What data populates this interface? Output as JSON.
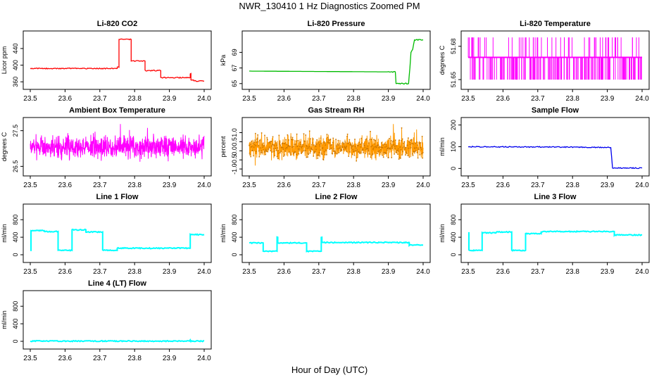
{
  "figure": {
    "title": "NWR_130410  1 Hz Diagnostics Zoomed PM",
    "xlabel": "Hour of Day (UTC)"
  },
  "chart_data": [
    {
      "type": "line",
      "title": "Li-820 CO2",
      "ylabel": "Licor ppm",
      "color": "#ff0000",
      "xlim": [
        23.5,
        24.0
      ],
      "xticks": [
        23.5,
        23.6,
        23.7,
        23.8,
        23.9,
        24.0
      ],
      "ylim": [
        352,
        472
      ],
      "yticks": [
        360,
        400,
        440
      ],
      "series": [
        {
          "style": "step",
          "x": [
            23.5,
            23.75,
            23.75,
            23.755,
            23.755,
            23.79,
            23.79,
            23.83,
            23.83,
            23.875,
            23.875,
            23.96,
            23.96,
            23.962,
            23.962,
            23.97,
            23.97,
            24.0
          ],
          "y": [
            392,
            392,
            395,
            395,
            462,
            462,
            410,
            410,
            387,
            387,
            370,
            370,
            380,
            380,
            364,
            364,
            362,
            362
          ]
        }
      ]
    },
    {
      "type": "line",
      "title": "Li-820 Pressure",
      "ylabel": "kPa",
      "color": "#00bb00",
      "xlim": [
        23.5,
        24.0
      ],
      "xticks": [
        23.5,
        23.6,
        23.7,
        23.8,
        23.9,
        24.0
      ],
      "ylim": [
        64.8,
        71.2
      ],
      "yticks": [
        65,
        67,
        69
      ],
      "series": [
        {
          "style": "line",
          "x": [
            23.5,
            23.7,
            23.9,
            23.92,
            23.922,
            23.958,
            23.962,
            23.965,
            23.97,
            23.975,
            23.98,
            24.0
          ],
          "y": [
            66.6,
            66.55,
            66.5,
            66.5,
            65.0,
            65.0,
            67.0,
            69.0,
            69.4,
            70.6,
            70.6,
            70.6
          ]
        }
      ]
    },
    {
      "type": "line",
      "title": "Li-820 Temperature",
      "ylabel": "degrees C",
      "color": "#ff00ff",
      "xlim": [
        23.5,
        24.0
      ],
      "xticks": [
        23.5,
        23.6,
        23.7,
        23.8,
        23.9,
        24.0
      ],
      "ylim": [
        51.645,
        51.69
      ],
      "yticks": [
        51.65,
        51.68
      ],
      "series": [
        {
          "style": "spikes",
          "base": 51.67,
          "low": 51.65,
          "high": 51.688,
          "seed": 11,
          "count": 230
        }
      ]
    },
    {
      "type": "line",
      "title": "Ambient Box Temperature",
      "ylabel": "degrees C",
      "color": "#ff00ff",
      "xlim": [
        23.5,
        24.0
      ],
      "xticks": [
        23.5,
        23.6,
        23.7,
        23.8,
        23.9,
        24.0
      ],
      "ylim": [
        26.35,
        27.75
      ],
      "yticks": [
        26.5,
        27.5
      ],
      "series": [
        {
          "style": "noise",
          "mean": 27.05,
          "amp": 0.28,
          "seed": 7,
          "count": 900
        }
      ]
    },
    {
      "type": "line",
      "title": "Gas Stream RH",
      "ylabel": "percent",
      "color": "#ff9900",
      "xlim": [
        23.5,
        24.0
      ],
      "xticks": [
        23.5,
        23.6,
        23.7,
        23.8,
        23.9,
        24.0
      ],
      "ylim": [
        -1.15,
        1.6
      ],
      "yticks": [
        -1.0,
        -0.5,
        0.0,
        0.5,
        1.0
      ],
      "series": [
        {
          "style": "noise",
          "mean": 0.2,
          "amp": 0.55,
          "seed": 3,
          "count": 900,
          "markers": true
        }
      ]
    },
    {
      "type": "line",
      "title": "Sample Flow",
      "ylabel": "ml/min",
      "color": "#0000ee",
      "xlim": [
        23.5,
        24.0
      ],
      "xticks": [
        23.5,
        23.6,
        23.7,
        23.8,
        23.9,
        24.0
      ],
      "ylim": [
        -15,
        215
      ],
      "yticks": [
        0,
        100,
        200
      ],
      "series": [
        {
          "style": "line",
          "x": [
            23.5,
            23.6,
            23.7,
            23.8,
            23.9,
            23.91,
            23.915,
            23.92,
            23.95,
            24.0
          ],
          "y": [
            100,
            99,
            99,
            98,
            97,
            96,
            3,
            2,
            2,
            2
          ]
        }
      ]
    },
    {
      "type": "line",
      "title": "Line 1 Flow",
      "ylabel": "ml/min",
      "color": "#00ffff",
      "xlim": [
        23.5,
        24.0
      ],
      "xticks": [
        23.5,
        23.6,
        23.7,
        23.8,
        23.9,
        24.0
      ],
      "ylim": [
        -80,
        1060
      ],
      "yticks": [
        0,
        400,
        800
      ],
      "series": [
        {
          "style": "step",
          "x": [
            23.5,
            23.502,
            23.502,
            23.54,
            23.54,
            23.58,
            23.58,
            23.62,
            23.62,
            23.66,
            23.66,
            23.708,
            23.708,
            23.75,
            23.75,
            23.96,
            23.96,
            24.0
          ],
          "y": [
            100,
            100,
            550,
            550,
            530,
            530,
            100,
            100,
            570,
            570,
            520,
            520,
            100,
            100,
            150,
            150,
            460,
            460
          ]
        }
      ]
    },
    {
      "type": "line",
      "title": "Line 2 Flow",
      "ylabel": "ml/min",
      "color": "#00ffff",
      "xlim": [
        23.5,
        24.0
      ],
      "xticks": [
        23.5,
        23.6,
        23.7,
        23.8,
        23.9,
        24.0
      ],
      "ylim": [
        -80,
        1060
      ],
      "yticks": [
        0,
        400,
        800
      ],
      "series": [
        {
          "style": "step",
          "x": [
            23.5,
            23.54,
            23.54,
            23.58,
            23.58,
            23.582,
            23.582,
            23.665,
            23.665,
            23.707,
            23.707,
            23.709,
            23.709,
            23.96,
            23.96,
            24.0
          ],
          "y": [
            270,
            270,
            80,
            80,
            400,
            400,
            270,
            270,
            80,
            80,
            400,
            400,
            280,
            280,
            220,
            220
          ]
        }
      ]
    },
    {
      "type": "line",
      "title": "Line 3 Flow",
      "ylabel": "ml/min",
      "color": "#00ffff",
      "xlim": [
        23.5,
        24.0
      ],
      "xticks": [
        23.5,
        23.6,
        23.7,
        23.8,
        23.9,
        24.0
      ],
      "ylim": [
        -80,
        1060
      ],
      "yticks": [
        0,
        400,
        800
      ],
      "series": [
        {
          "style": "step",
          "x": [
            23.5,
            23.502,
            23.502,
            23.54,
            23.54,
            23.58,
            23.58,
            23.625,
            23.625,
            23.665,
            23.665,
            23.71,
            23.71,
            23.92,
            23.92,
            24.0
          ],
          "y": [
            500,
            500,
            100,
            100,
            500,
            500,
            520,
            520,
            100,
            100,
            480,
            480,
            530,
            530,
            450,
            450
          ]
        }
      ]
    },
    {
      "type": "line",
      "title": "Line 4 (LT) Flow",
      "ylabel": "ml/min",
      "color": "#00ffff",
      "xlim": [
        23.5,
        24.0
      ],
      "xticks": [
        23.5,
        23.6,
        23.7,
        23.8,
        23.9,
        24.0
      ],
      "ylim": [
        -80,
        1060
      ],
      "yticks": [
        0,
        400,
        800
      ],
      "series": [
        {
          "style": "line",
          "x": [
            23.5,
            23.958,
            23.96,
            23.962,
            24.0
          ],
          "y": [
            5,
            5,
            30,
            5,
            5
          ]
        }
      ]
    }
  ]
}
